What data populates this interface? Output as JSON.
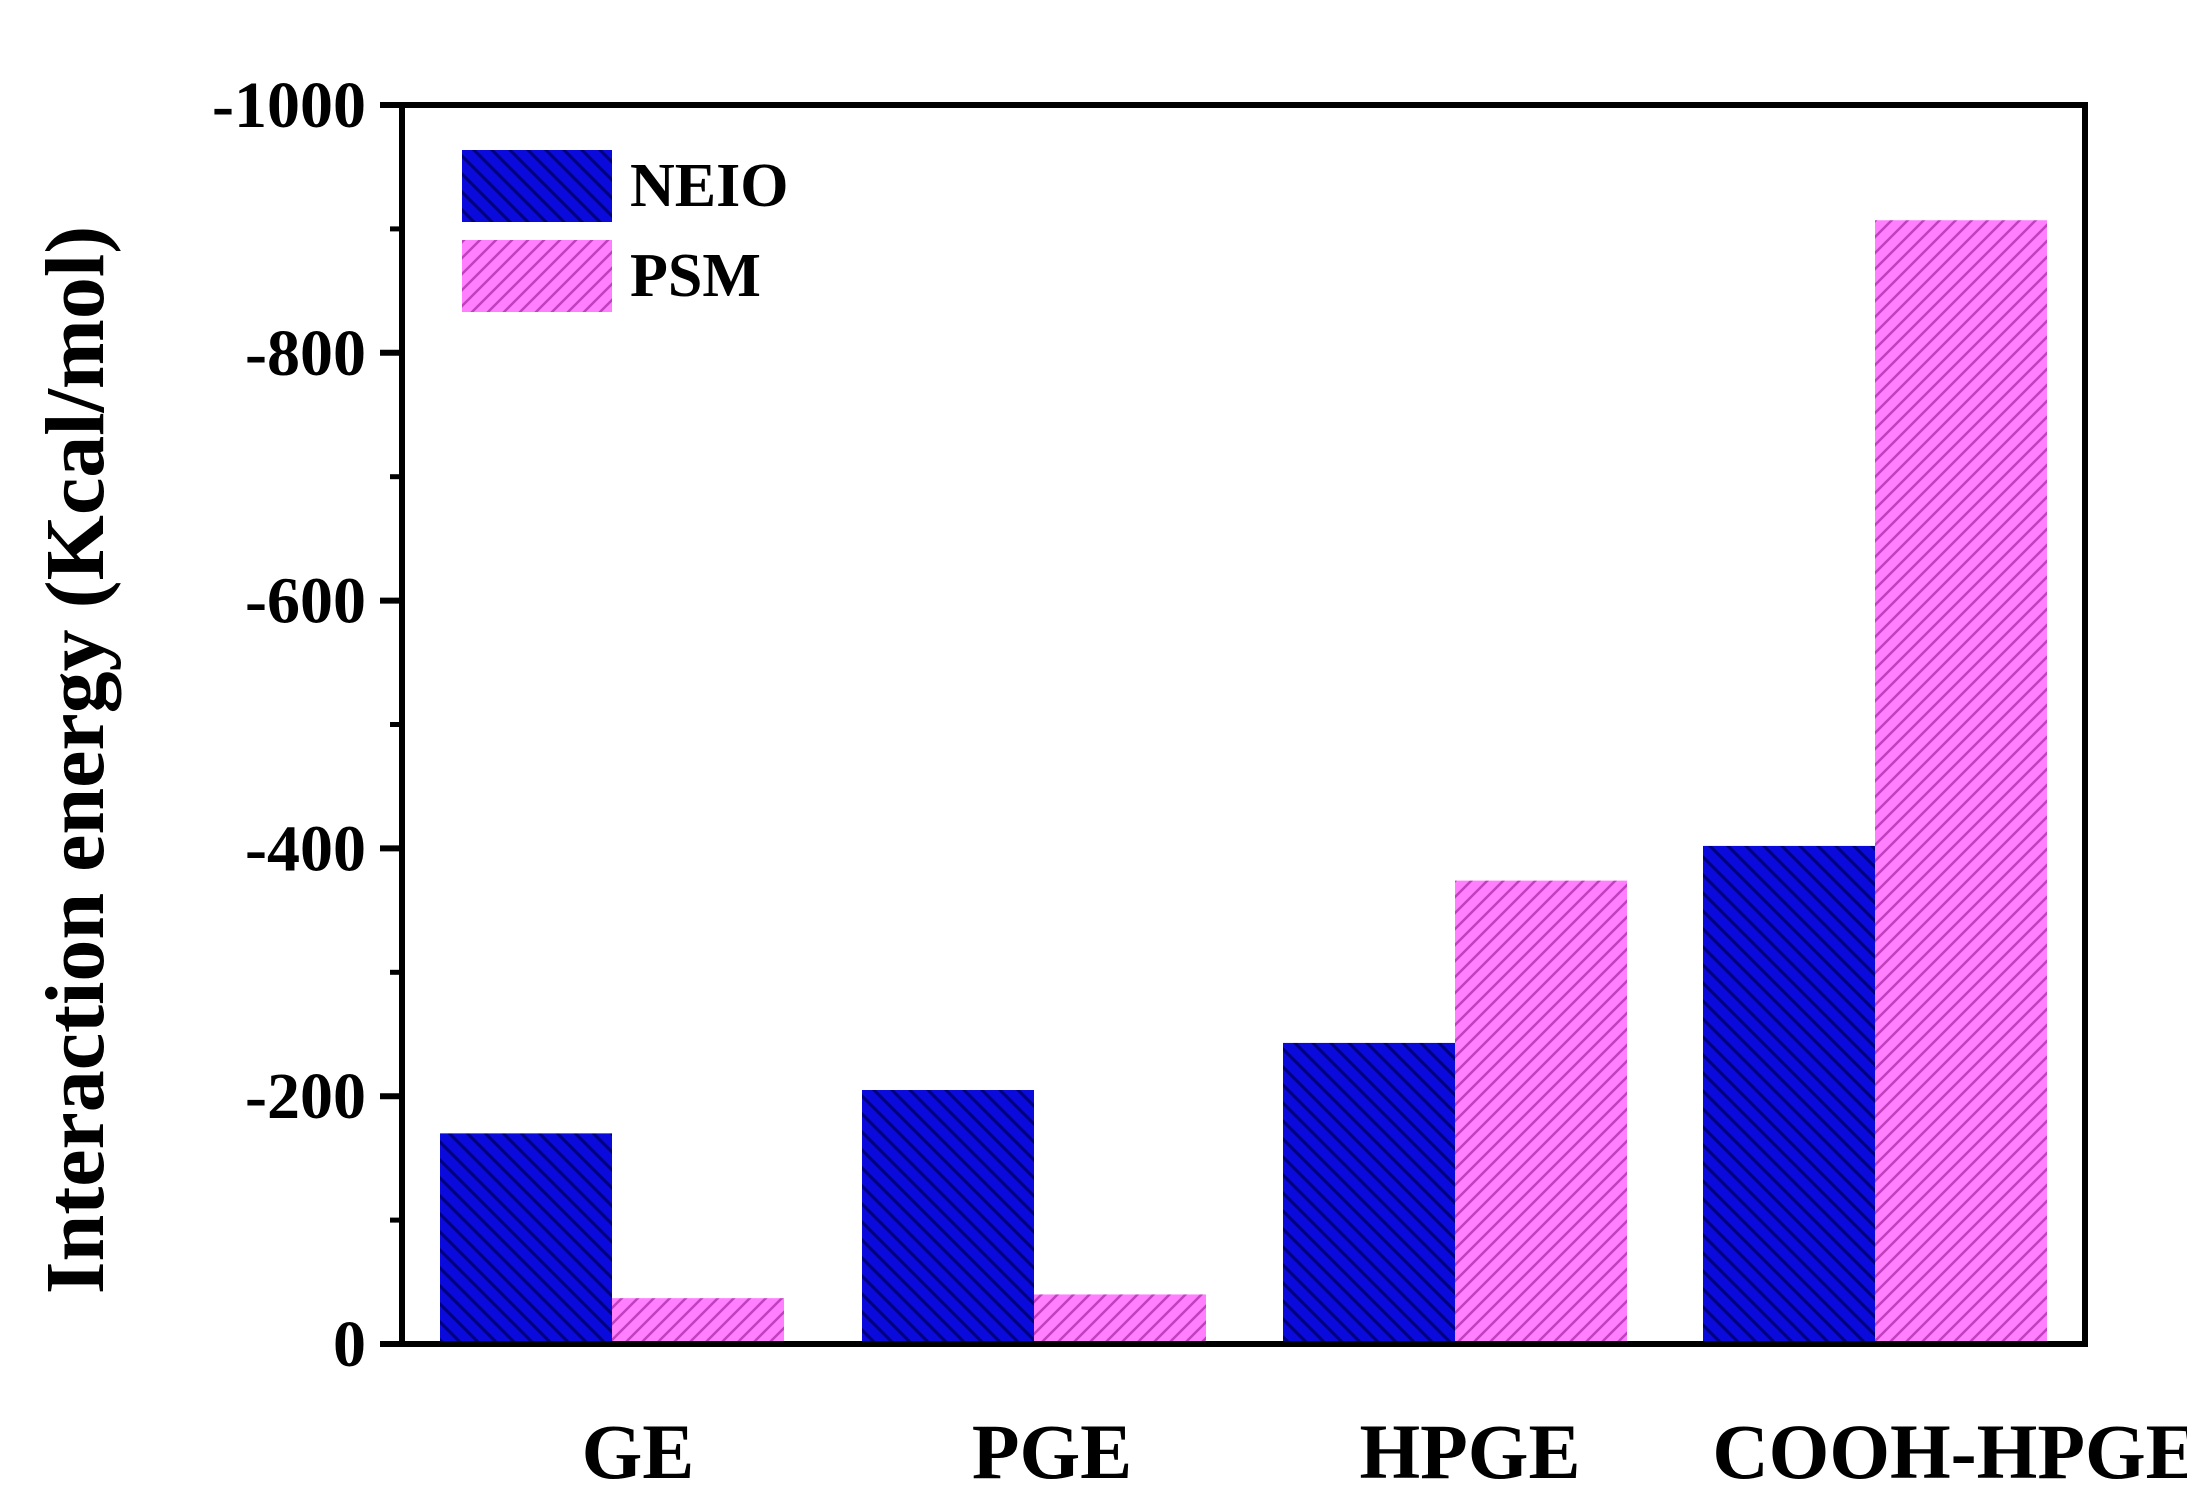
{
  "chart_data": {
    "type": "bar",
    "title": "",
    "xlabel": "",
    "ylabel": "Interaction energy (Kcal/mol)",
    "categories": [
      "GE",
      "PGE",
      "HPGE",
      "COOH-HPGE"
    ],
    "series": [
      {
        "name": "NEIO",
        "values": [
          -170,
          -205,
          -243,
          -402
        ],
        "color": "#0a0adc",
        "pattern": "backslash-hatch"
      },
      {
        "name": "PSM",
        "values": [
          -37,
          -40,
          -374,
          -907
        ],
        "color": "#ff7fff",
        "pattern": "slash-hatch"
      }
    ],
    "ylim": [
      0,
      -1000
    ],
    "yticks": [
      0,
      -200,
      -400,
      -600,
      -800,
      -1000
    ],
    "ytick_labels": [
      "0",
      "-200",
      "-400",
      "-600",
      "-800",
      "-1000"
    ],
    "legend_position": "top-left",
    "grid": false
  }
}
